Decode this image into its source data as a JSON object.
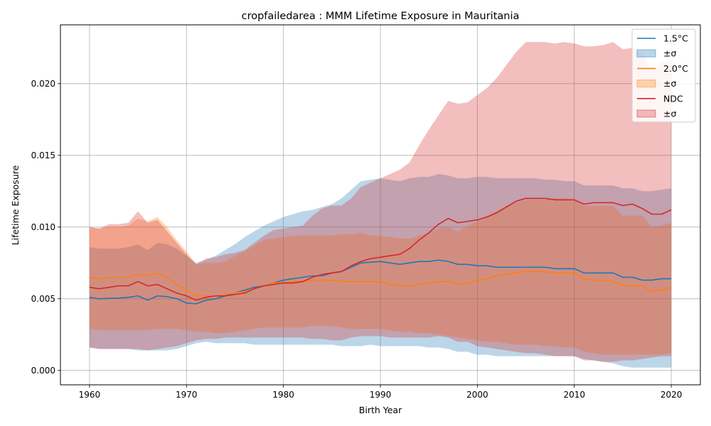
{
  "chart_data": {
    "type": "line",
    "title": "cropfailedarea : MMM Lifetime Exposure in Mauritania",
    "xlabel": "Birth Year",
    "ylabel": "Lifetime Exposure",
    "xlim": [
      1957,
      2023
    ],
    "ylim": [
      -0.001,
      0.0241
    ],
    "xticks": [
      1960,
      1970,
      1980,
      1990,
      2000,
      2010,
      2020
    ],
    "yticks": [
      0.0,
      0.005,
      0.01,
      0.015,
      0.02
    ],
    "ytick_labels": [
      "0.000",
      "0.005",
      "0.010",
      "0.015",
      "0.020"
    ],
    "grid": true,
    "legend_position": "upper right",
    "legend": [
      {
        "label": "1.5°C",
        "kind": "line",
        "color": "#1f77b4"
      },
      {
        "label": "±σ",
        "kind": "band",
        "color": "#1f77b4"
      },
      {
        "label": "2.0°C",
        "kind": "line",
        "color": "#ff7f0e"
      },
      {
        "label": "±σ",
        "kind": "band",
        "color": "#ff7f0e"
      },
      {
        "label": "NDC",
        "kind": "line",
        "color": "#d62728"
      },
      {
        "label": "±σ",
        "kind": "band",
        "color": "#d62728"
      }
    ],
    "x": [
      1960,
      1961,
      1962,
      1963,
      1964,
      1965,
      1966,
      1967,
      1968,
      1969,
      1970,
      1971,
      1972,
      1973,
      1974,
      1975,
      1976,
      1977,
      1978,
      1979,
      1980,
      1981,
      1982,
      1983,
      1984,
      1985,
      1986,
      1987,
      1988,
      1989,
      1990,
      1991,
      1992,
      1993,
      1994,
      1995,
      1996,
      1997,
      1998,
      1999,
      2000,
      2001,
      2002,
      2003,
      2004,
      2005,
      2006,
      2007,
      2008,
      2009,
      2010,
      2011,
      2012,
      2013,
      2014,
      2015,
      2016,
      2017,
      2018,
      2019,
      2020
    ],
    "series": [
      {
        "name": "1.5°C",
        "color": "#1f77b4",
        "mean": [
          0.0051,
          0.005,
          0.00503,
          0.00505,
          0.0051,
          0.0052,
          0.0049,
          0.0052,
          0.00515,
          0.005,
          0.0047,
          0.00465,
          0.0049,
          0.005,
          0.0052,
          0.0054,
          0.0056,
          0.0058,
          0.0059,
          0.0061,
          0.0063,
          0.0064,
          0.0065,
          0.0066,
          0.0066,
          0.0068,
          0.0069,
          0.0072,
          0.0075,
          0.00755,
          0.0076,
          0.0075,
          0.0074,
          0.0075,
          0.0076,
          0.0076,
          0.0077,
          0.0076,
          0.0074,
          0.0074,
          0.0073,
          0.0073,
          0.0072,
          0.0072,
          0.0072,
          0.0072,
          0.0072,
          0.0072,
          0.0071,
          0.0071,
          0.0071,
          0.0068,
          0.0068,
          0.0068,
          0.0068,
          0.0065,
          0.0065,
          0.0063,
          0.0063,
          0.0064,
          0.0064
        ],
        "lower": [
          0.0016,
          0.0015,
          0.0015,
          0.0015,
          0.0015,
          0.0014,
          0.0014,
          0.0014,
          0.0014,
          0.0015,
          0.0017,
          0.0019,
          0.002,
          0.0019,
          0.0019,
          0.0019,
          0.0019,
          0.0018,
          0.0018,
          0.0018,
          0.0018,
          0.0018,
          0.0018,
          0.0018,
          0.0018,
          0.0018,
          0.0017,
          0.0017,
          0.0017,
          0.0018,
          0.0017,
          0.0017,
          0.0017,
          0.0017,
          0.0017,
          0.0016,
          0.0016,
          0.0015,
          0.0013,
          0.0013,
          0.0011,
          0.0011,
          0.001,
          0.001,
          0.001,
          0.001,
          0.001,
          0.001,
          0.001,
          0.001,
          0.001,
          0.0008,
          0.0007,
          0.0006,
          0.0005,
          0.0003,
          0.0002,
          0.0002,
          0.0002,
          0.0002,
          0.0002
        ],
        "upper": [
          0.0086,
          0.0085,
          0.0085,
          0.0085,
          0.0086,
          0.0088,
          0.0084,
          0.0089,
          0.0088,
          0.0085,
          0.008,
          0.0075,
          0.0077,
          0.008,
          0.0084,
          0.0088,
          0.0093,
          0.0097,
          0.0101,
          0.0104,
          0.0107,
          0.0109,
          0.0111,
          0.0112,
          0.0114,
          0.0116,
          0.012,
          0.0126,
          0.0132,
          0.0133,
          0.0134,
          0.0133,
          0.0132,
          0.0134,
          0.0135,
          0.0135,
          0.0137,
          0.0136,
          0.0134,
          0.0134,
          0.0135,
          0.0135,
          0.0134,
          0.0134,
          0.0134,
          0.0134,
          0.0134,
          0.0133,
          0.0133,
          0.0132,
          0.0132,
          0.0129,
          0.0129,
          0.0129,
          0.0129,
          0.0127,
          0.0127,
          0.0125,
          0.0125,
          0.0126,
          0.0127
        ]
      },
      {
        "name": "2.0°C",
        "color": "#ff7f0e",
        "mean": [
          0.0065,
          0.0064,
          0.0065,
          0.0065,
          0.0065,
          0.0067,
          0.0066,
          0.0068,
          0.0065,
          0.006,
          0.0056,
          0.0052,
          0.0052,
          0.0052,
          0.0053,
          0.0054,
          0.0055,
          0.0057,
          0.0059,
          0.0061,
          0.0061,
          0.0062,
          0.0062,
          0.0063,
          0.0063,
          0.0063,
          0.0062,
          0.0062,
          0.0062,
          0.0062,
          0.0062,
          0.006,
          0.0059,
          0.0059,
          0.006,
          0.0061,
          0.0062,
          0.0062,
          0.006,
          0.0061,
          0.0063,
          0.0064,
          0.0066,
          0.0067,
          0.0068,
          0.0069,
          0.0069,
          0.0069,
          0.0068,
          0.0068,
          0.0068,
          0.0064,
          0.0063,
          0.0063,
          0.0062,
          0.0059,
          0.0059,
          0.0059,
          0.0055,
          0.0056,
          0.0058
        ],
        "lower": [
          0.0029,
          0.0028,
          0.0028,
          0.0028,
          0.0028,
          0.0028,
          0.0028,
          0.0029,
          0.0029,
          0.0029,
          0.0028,
          0.0027,
          0.0027,
          0.0026,
          0.0026,
          0.0027,
          0.0028,
          0.0029,
          0.003,
          0.003,
          0.003,
          0.003,
          0.003,
          0.0031,
          0.0031,
          0.0031,
          0.003,
          0.0029,
          0.0029,
          0.0029,
          0.0029,
          0.0028,
          0.0027,
          0.0027,
          0.0026,
          0.0026,
          0.0025,
          0.0024,
          0.0023,
          0.0022,
          0.0021,
          0.002,
          0.002,
          0.0019,
          0.0018,
          0.0018,
          0.0018,
          0.0017,
          0.0017,
          0.0016,
          0.0016,
          0.0013,
          0.0012,
          0.0011,
          0.0011,
          0.0011,
          0.0011,
          0.0011,
          0.0011,
          0.0011,
          0.0012
        ],
        "upper": [
          0.01,
          0.0099,
          0.01,
          0.01,
          0.0101,
          0.0106,
          0.0104,
          0.0107,
          0.01,
          0.0091,
          0.0083,
          0.0074,
          0.0075,
          0.0075,
          0.0076,
          0.008,
          0.0083,
          0.0087,
          0.0091,
          0.0092,
          0.0093,
          0.0094,
          0.0094,
          0.0094,
          0.0094,
          0.0094,
          0.0095,
          0.0095,
          0.0096,
          0.0094,
          0.0094,
          0.0093,
          0.0092,
          0.0092,
          0.0094,
          0.0096,
          0.0099,
          0.01,
          0.0097,
          0.0101,
          0.0104,
          0.0108,
          0.0111,
          0.0115,
          0.0117,
          0.0119,
          0.0119,
          0.0119,
          0.012,
          0.012,
          0.0119,
          0.0115,
          0.0115,
          0.0115,
          0.0115,
          0.0108,
          0.0108,
          0.0108,
          0.01,
          0.0101,
          0.0103
        ]
      },
      {
        "name": "NDC",
        "color": "#d62728",
        "mean": [
          0.0058,
          0.0057,
          0.0058,
          0.0059,
          0.0059,
          0.0062,
          0.0059,
          0.006,
          0.0057,
          0.0054,
          0.0052,
          0.0049,
          0.0051,
          0.0052,
          0.0052,
          0.0053,
          0.0054,
          0.0057,
          0.0059,
          0.006,
          0.0061,
          0.0061,
          0.0062,
          0.0065,
          0.0067,
          0.0068,
          0.0069,
          0.0073,
          0.0076,
          0.0078,
          0.0079,
          0.008,
          0.0081,
          0.0085,
          0.0091,
          0.0096,
          0.0102,
          0.0106,
          0.0103,
          0.0104,
          0.0105,
          0.0107,
          0.011,
          0.0114,
          0.0118,
          0.012,
          0.012,
          0.012,
          0.0119,
          0.0119,
          0.0119,
          0.0116,
          0.0117,
          0.0117,
          0.0117,
          0.0115,
          0.0116,
          0.0113,
          0.0109,
          0.0109,
          0.0112
        ],
        "lower": [
          0.0016,
          0.0015,
          0.0015,
          0.0015,
          0.0015,
          0.0015,
          0.0014,
          0.0015,
          0.0016,
          0.0017,
          0.0019,
          0.0021,
          0.0022,
          0.0022,
          0.0023,
          0.0023,
          0.0023,
          0.0023,
          0.0023,
          0.0023,
          0.0023,
          0.0023,
          0.0023,
          0.0022,
          0.0022,
          0.0021,
          0.0021,
          0.0023,
          0.0024,
          0.0024,
          0.0024,
          0.0023,
          0.0023,
          0.0023,
          0.0023,
          0.0023,
          0.0024,
          0.0023,
          0.002,
          0.002,
          0.0017,
          0.0016,
          0.0015,
          0.0014,
          0.0013,
          0.0012,
          0.0012,
          0.0011,
          0.001,
          0.001,
          0.001,
          0.0007,
          0.0007,
          0.0006,
          0.0006,
          0.0007,
          0.0007,
          0.0008,
          0.0009,
          0.001,
          0.001
        ],
        "upper": [
          0.01,
          0.0099,
          0.0102,
          0.0102,
          0.0103,
          0.0111,
          0.0103,
          0.0105,
          0.0097,
          0.0089,
          0.0081,
          0.0074,
          0.0078,
          0.0079,
          0.0081,
          0.0082,
          0.0084,
          0.0089,
          0.0094,
          0.0098,
          0.0099,
          0.01,
          0.0101,
          0.0108,
          0.0113,
          0.0115,
          0.0115,
          0.012,
          0.0128,
          0.0131,
          0.0134,
          0.0137,
          0.014,
          0.0145,
          0.0157,
          0.0168,
          0.0178,
          0.0188,
          0.0186,
          0.0187,
          0.0192,
          0.0197,
          0.0204,
          0.0213,
          0.0222,
          0.0229,
          0.0229,
          0.0229,
          0.0228,
          0.0229,
          0.0228,
          0.0226,
          0.0226,
          0.0227,
          0.0229,
          0.0224,
          0.0225,
          0.0221,
          0.0209,
          0.0215,
          0.0216
        ]
      }
    ]
  }
}
